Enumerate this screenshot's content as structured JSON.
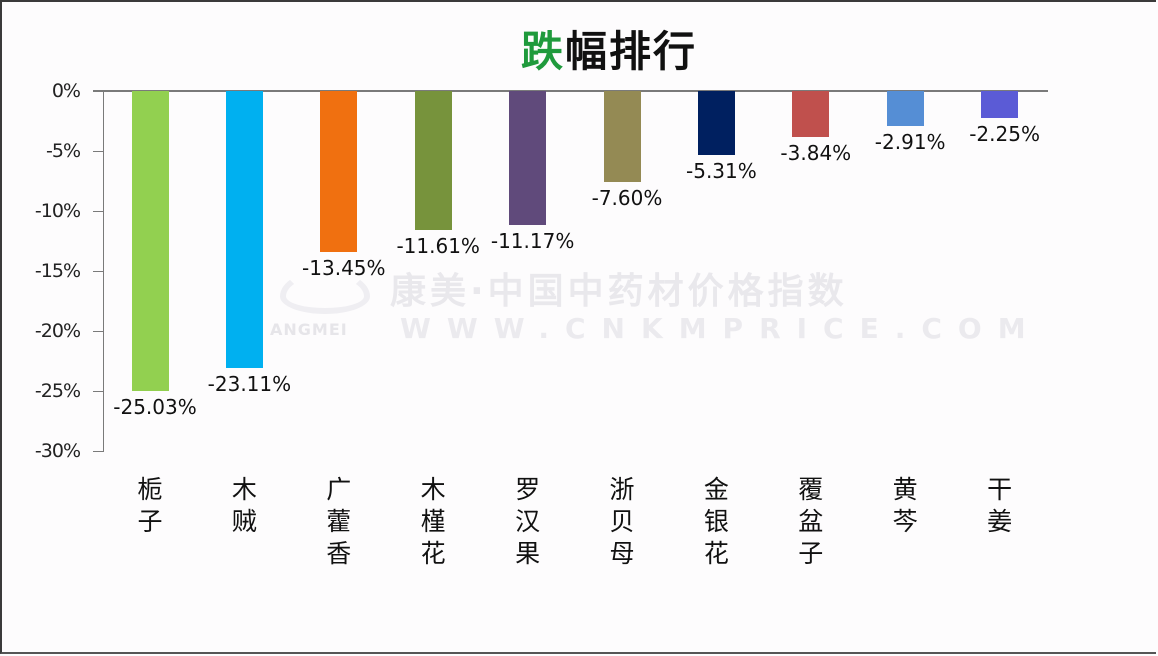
{
  "title": {
    "accent": "跌",
    "rest": "幅排行"
  },
  "watermark": {
    "chinese": "康美·中国中药材价格指数",
    "url": "WWW.CNKMPRICE.COM",
    "brand": "ANGMEI"
  },
  "y_axis": {
    "ticks": [
      "0%",
      "-5%",
      "-10%",
      "-15%",
      "-20%",
      "-25%",
      "-30%"
    ]
  },
  "bars": [
    {
      "name": "栀子",
      "lines": [
        "栀",
        "子"
      ],
      "value": -25.03,
      "label": "-25.03%",
      "color": "#92d050"
    },
    {
      "name": "木贼",
      "lines": [
        "木",
        "贼"
      ],
      "value": -23.11,
      "label": "-23.11%",
      "color": "#00b0f0"
    },
    {
      "name": "广藿香",
      "lines": [
        "广",
        "藿",
        "香"
      ],
      "value": -13.45,
      "label": "-13.45%",
      "color": "#f07010"
    },
    {
      "name": "木槿花",
      "lines": [
        "木",
        "槿",
        "花"
      ],
      "value": -11.61,
      "label": "-11.61%",
      "color": "#77933c"
    },
    {
      "name": "罗汉果",
      "lines": [
        "罗",
        "汉",
        "果"
      ],
      "value": -11.17,
      "label": "-11.17%",
      "color": "#604a7b"
    },
    {
      "name": "浙贝母",
      "lines": [
        "浙",
        "贝",
        "母"
      ],
      "value": -7.6,
      "label": "-7.60%",
      "color": "#948a54"
    },
    {
      "name": "金银花",
      "lines": [
        "金",
        "银",
        "花"
      ],
      "value": -5.31,
      "label": "-5.31%",
      "color": "#002060"
    },
    {
      "name": "覆盆子",
      "lines": [
        "覆",
        "盆",
        "子"
      ],
      "value": -3.84,
      "label": "-3.84%",
      "color": "#c0504d"
    },
    {
      "name": "黄芩",
      "lines": [
        "黄",
        "芩"
      ],
      "value": -2.91,
      "label": "-2.91%",
      "color": "#558ed5"
    },
    {
      "name": "干姜",
      "lines": [
        "干",
        "姜"
      ],
      "value": -2.25,
      "label": "-2.25%",
      "color": "#5b5bd6"
    }
  ],
  "chart_data": {
    "type": "bar",
    "title": "跌幅排行",
    "categories": [
      "栀子",
      "木贼",
      "广藿香",
      "木槿花",
      "罗汉果",
      "浙贝母",
      "金银花",
      "覆盆子",
      "黄芩",
      "干姜"
    ],
    "values": [
      -25.03,
      -23.11,
      -13.45,
      -11.61,
      -11.17,
      -7.6,
      -5.31,
      -3.84,
      -2.91,
      -2.25
    ],
    "value_labels": [
      "-25.03%",
      "-23.11%",
      "-13.45%",
      "-11.61%",
      "-11.17%",
      "-7.60%",
      "-5.31%",
      "-3.84%",
      "-2.91%",
      "-2.25%"
    ],
    "colors": [
      "#92d050",
      "#00b0f0",
      "#f07010",
      "#77933c",
      "#604a7b",
      "#948a54",
      "#002060",
      "#c0504d",
      "#558ed5",
      "#5b5bd6"
    ],
    "xlabel": "",
    "ylabel": "",
    "ylim": [
      -30,
      0
    ],
    "yticks": [
      0,
      -5,
      -10,
      -15,
      -20,
      -25,
      -30
    ],
    "ytick_format": "percent",
    "grid": false,
    "legend": "none",
    "watermark": "康美·中国中药材价格指数 WWW.CNKMPRICE.COM"
  }
}
